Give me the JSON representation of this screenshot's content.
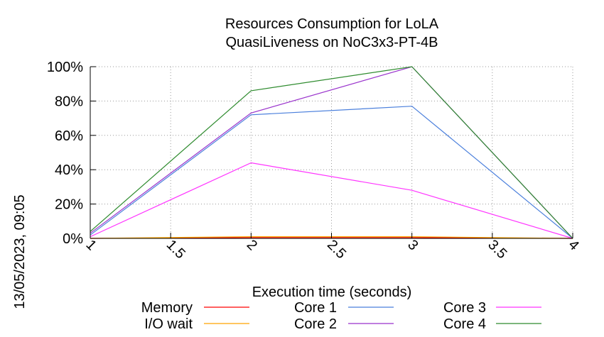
{
  "chart_data": {
    "type": "line",
    "title": "Resources Consumption for LoLA",
    "subtitle": "QuasiLiveness on NoC3x3-PT-4B",
    "xlabel": "Execution time (seconds)",
    "ylabel": "",
    "side_label": "13/05/2023, 09:05",
    "xlim": [
      1,
      4
    ],
    "ylim": [
      0,
      100
    ],
    "grid": true,
    "legend_position": "bottom",
    "x_ticks": [
      1,
      1.5,
      2,
      2.5,
      3,
      3.5,
      4
    ],
    "x_tick_labels": [
      "1",
      "1.5",
      "2",
      "2.5",
      "3",
      "3.5",
      "4"
    ],
    "y_ticks": [
      0,
      20,
      40,
      60,
      80,
      100
    ],
    "y_tick_labels": [
      "0%",
      "20%",
      "40%",
      "60%",
      "80%",
      "100%"
    ],
    "x": [
      1,
      2,
      3,
      4
    ],
    "series": [
      {
        "name": "Memory",
        "color": "#ff0000",
        "values": [
          0,
          0.5,
          0.5,
          0
        ]
      },
      {
        "name": "I/O wait",
        "color": "#ffa500",
        "values": [
          0,
          1,
          1,
          0
        ]
      },
      {
        "name": "Core 1",
        "color": "#4a7fdc",
        "values": [
          2,
          72,
          77,
          0
        ]
      },
      {
        "name": "Core 2",
        "color": "#9932cc",
        "values": [
          3,
          73,
          100,
          0
        ]
      },
      {
        "name": "Core 3",
        "color": "#ff33ff",
        "values": [
          1,
          44,
          28,
          0
        ]
      },
      {
        "name": "Core 4",
        "color": "#2e8b2e",
        "values": [
          4,
          86,
          100,
          0
        ]
      }
    ]
  }
}
